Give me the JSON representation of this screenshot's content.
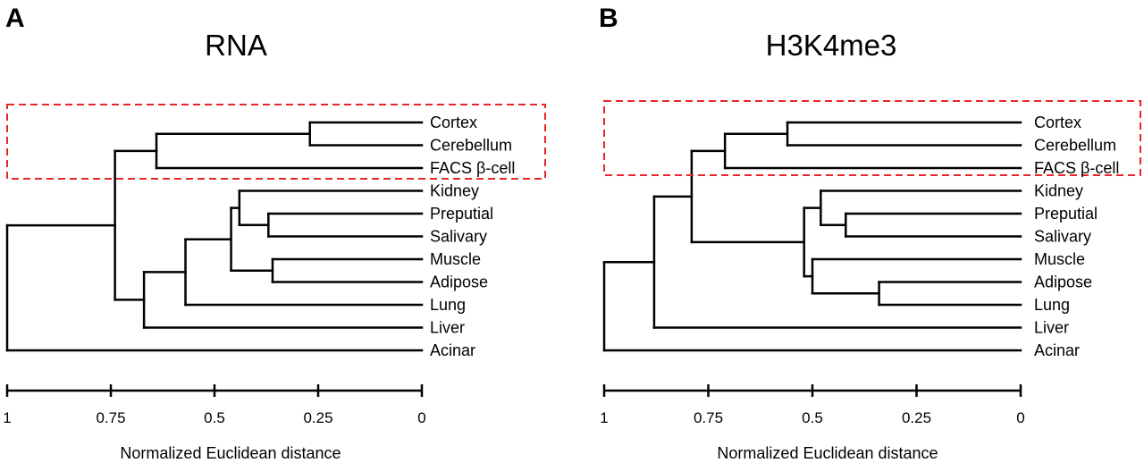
{
  "panels": [
    {
      "letter": "A",
      "title": "RNA",
      "x_axis_label": "Normalized Euclidean distance",
      "ticks": [
        "1",
        "0.75",
        "0.5",
        "0.25",
        "0"
      ],
      "leaves": [
        "Cortex",
        "Cerebellum",
        "FACS β-cell",
        "Kidney",
        "Preputial",
        "Salivary",
        "Muscle",
        "Adipose",
        "Lung",
        "Liver",
        "Acinar"
      ],
      "highlighted_leaves": [
        "Cortex",
        "Cerebellum",
        "FACS β-cell"
      ],
      "merges": [
        {
          "children": [
            0,
            1
          ],
          "height": 0.27
        },
        {
          "children": [
            11,
            2
          ],
          "height": 0.64
        },
        {
          "children": [
            4,
            5
          ],
          "height": 0.37
        },
        {
          "children": [
            3,
            13
          ],
          "height": 0.44
        },
        {
          "children": [
            6,
            7
          ],
          "height": 0.36
        },
        {
          "children": [
            14,
            15
          ],
          "height": 0.46
        },
        {
          "children": [
            16,
            8
          ],
          "height": 0.57
        },
        {
          "children": [
            17,
            9
          ],
          "height": 0.67
        },
        {
          "children": [
            12,
            18
          ],
          "height": 0.74
        },
        {
          "children": [
            19,
            10
          ],
          "height": 1.0
        }
      ]
    },
    {
      "letter": "B",
      "title": "H3K4me3",
      "x_axis_label": "Normalized Euclidean distance",
      "ticks": [
        "1",
        "0.75",
        "0.5",
        "0.25",
        "0"
      ],
      "leaves": [
        "Cortex",
        "Cerebellum",
        "FACS β-cell",
        "Kidney",
        "Preputial",
        "Salivary",
        "Muscle",
        "Adipose",
        "Lung",
        "Liver",
        "Acinar"
      ],
      "highlighted_leaves": [
        "Cortex",
        "Cerebellum",
        "FACS β-cell"
      ],
      "merges": [
        {
          "children": [
            0,
            1
          ],
          "height": 0.56
        },
        {
          "children": [
            11,
            2
          ],
          "height": 0.71
        },
        {
          "children": [
            4,
            5
          ],
          "height": 0.42
        },
        {
          "children": [
            3,
            13
          ],
          "height": 0.48
        },
        {
          "children": [
            7,
            8
          ],
          "height": 0.34
        },
        {
          "children": [
            6,
            15
          ],
          "height": 0.5
        },
        {
          "children": [
            14,
            16
          ],
          "height": 0.52
        },
        {
          "children": [
            12,
            17
          ],
          "height": 0.79
        },
        {
          "children": [
            18,
            9
          ],
          "height": 0.88
        },
        {
          "children": [
            19,
            10
          ],
          "height": 1.0
        }
      ]
    }
  ]
}
